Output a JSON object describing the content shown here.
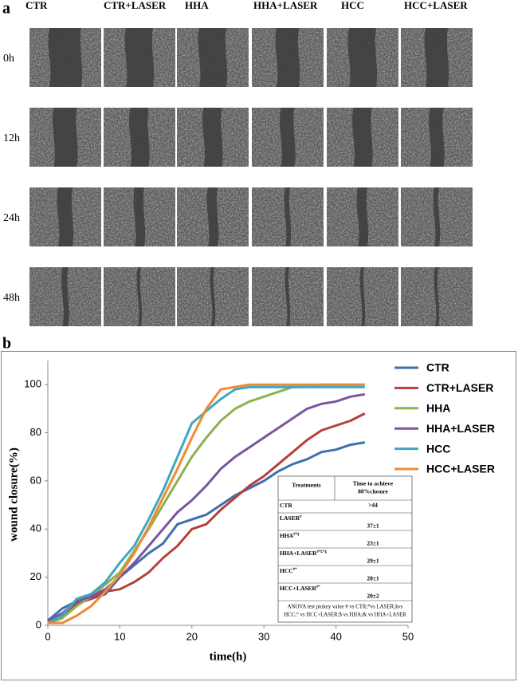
{
  "panel_a": {
    "label": "a",
    "columns": [
      "CTR",
      "CTR+LASER",
      "HHA",
      "HHA+LASER",
      "HCC",
      "HCC+LASER"
    ],
    "rows": [
      "0h",
      "12h",
      "24h",
      "48h"
    ]
  },
  "chart_data": {
    "type": "line",
    "label": "b",
    "xlabel": "time(h)",
    "ylabel": "wound closure(%)",
    "x": [
      0,
      2,
      4,
      6,
      8,
      10,
      12,
      14,
      16,
      18,
      20,
      22,
      24,
      26,
      28,
      30,
      32,
      34,
      36,
      38,
      40,
      42,
      44
    ],
    "xlim": [
      0,
      50
    ],
    "xticks": [
      0,
      10,
      20,
      30,
      40,
      50
    ],
    "ylim": [
      0,
      110
    ],
    "yticks": [
      0,
      20,
      40,
      60,
      80,
      100
    ],
    "legend": "right",
    "series": [
      {
        "name": "CTR",
        "color": "#3f6fb0",
        "values": [
          2,
          7,
          10,
          11,
          13,
          20,
          25,
          30,
          34,
          42,
          44,
          46,
          50,
          54,
          57,
          60,
          64,
          67,
          69,
          72,
          73,
          75,
          76
        ]
      },
      {
        "name": "CTR+LASER",
        "color": "#b7403c",
        "values": [
          1,
          3,
          9,
          11,
          14,
          15,
          18,
          22,
          28,
          33,
          40,
          42,
          48,
          53,
          58,
          62,
          67,
          72,
          77,
          81,
          83,
          85,
          88
        ]
      },
      {
        "name": "HHA",
        "color": "#8db150",
        "values": [
          1,
          3,
          8,
          12,
          17,
          22,
          31,
          40,
          50,
          60,
          70,
          78,
          85,
          90,
          93,
          95,
          97,
          99,
          99,
          100,
          100,
          100,
          100
        ]
      },
      {
        "name": "HHA+LASER",
        "color": "#7a559f",
        "values": [
          2,
          5,
          10,
          12,
          15,
          20,
          26,
          33,
          40,
          47,
          52,
          58,
          65,
          70,
          74,
          78,
          82,
          86,
          90,
          92,
          93,
          95,
          96
        ]
      },
      {
        "name": "HCC",
        "color": "#3fa7bf",
        "values": [
          1,
          4,
          11,
          13,
          18,
          26,
          33,
          44,
          56,
          70,
          84,
          89,
          94,
          98,
          99,
          99,
          99,
          99,
          99,
          99,
          99,
          99,
          99
        ]
      },
      {
        "name": "HCC+LASER",
        "color": "#ef8a34",
        "values": [
          1,
          1,
          4,
          8,
          14,
          21,
          30,
          41,
          53,
          65,
          78,
          90,
          98,
          99,
          100,
          100,
          100,
          100,
          100,
          100,
          100,
          100,
          100
        ]
      }
    ],
    "table": {
      "header": [
        [
          "Treatments"
        ],
        [
          "Time to achieve",
          "80%closure"
        ]
      ],
      "rows": [
        {
          "name": "CTR",
          "marks": null,
          "value": ">44"
        },
        {
          "name": "LASER",
          "marks": "#",
          "value": "37±1"
        },
        {
          "name": "HHA",
          "marks": "#*§",
          "value": "23±1"
        },
        {
          "name": "HHA+LASER",
          "marks": "#*£*§",
          "value": "29±1"
        },
        {
          "name": "HCC",
          "marks": "#*",
          "value": "20±1"
        },
        {
          "name": "HCC+LASER",
          "marks": "#*",
          "value": "20±2"
        }
      ],
      "footnote": [
        "ANOVA test ptukey value # vs CTR;*vs LASER;§vs",
        "HCC;° vs HCC+LASER;$ vs HHA;& vs HHA+LASER"
      ]
    }
  }
}
